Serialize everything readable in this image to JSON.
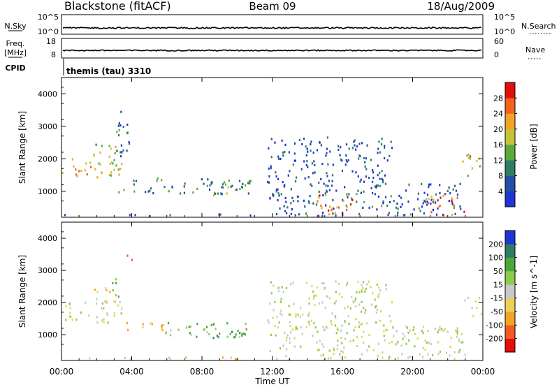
{
  "header": {
    "radar": "Blackstone (fitACF)",
    "beam": "Beam 09",
    "date": "18/Aug/2009"
  },
  "top_panels": {
    "noise": {
      "left_label": "N.Sky",
      "right_label": "N.Search",
      "left_ticks": [
        "10^5",
        "10^0"
      ],
      "right_ticks": [
        "10^5",
        "10^0"
      ]
    },
    "freq": {
      "left_label_line1": "Freq.",
      "left_label_line2": "[MHz]",
      "right_label": "Nave",
      "left_ticks": [
        "18",
        "8"
      ],
      "right_ticks": [
        "60",
        "0"
      ]
    },
    "cpid": {
      "label": "CPID",
      "value": "themis (tau) 3310"
    }
  },
  "chart_data": [
    {
      "type": "heatmap",
      "title": "",
      "xlabel": "Time UT",
      "ylabel": "Slant Range [km]",
      "xlim": [
        0,
        24
      ],
      "ylim": [
        200,
        4500
      ],
      "x_ticks": [
        "00:00",
        "04:00",
        "08:00",
        "12:00",
        "16:00",
        "20:00",
        "00:00"
      ],
      "y_ticks": [
        1000,
        2000,
        3000,
        4000
      ],
      "colorbar": {
        "label": "Power [dB]",
        "ticks": [
          4,
          8,
          12,
          16,
          20,
          24,
          28
        ],
        "range": [
          0,
          32
        ],
        "colors": [
          "#1f35d6",
          "#244fa6",
          "#2e7d62",
          "#5aaa3c",
          "#c6c33a",
          "#f2a424",
          "#f2631e",
          "#e60d0d"
        ]
      },
      "regions": [
        {
          "t0": 0.0,
          "t1": 3.4,
          "r0": 1400,
          "r1": 2100,
          "value": 20
        },
        {
          "t0": 1.8,
          "t1": 3.3,
          "r0": 2000,
          "r1": 2500,
          "value": 16
        },
        {
          "t0": 3.0,
          "t1": 4.0,
          "r0": 2100,
          "r1": 3500,
          "value": 6
        },
        {
          "t0": 3.2,
          "t1": 10.8,
          "r0": 950,
          "r1": 1450,
          "value": 9
        },
        {
          "t0": 8.5,
          "t1": 10.8,
          "r0": 900,
          "r1": 1200,
          "value": 17
        },
        {
          "t0": 11.7,
          "t1": 18.8,
          "r0": 1300,
          "r1": 2700,
          "value": 5
        },
        {
          "t0": 11.8,
          "t1": 23.0,
          "r0": 300,
          "r1": 1300,
          "value": 6
        },
        {
          "t0": 14.3,
          "t1": 16.6,
          "r0": 250,
          "r1": 950,
          "value": 24
        },
        {
          "t0": 20.6,
          "t1": 22.9,
          "r0": 300,
          "r1": 900,
          "value": 25
        },
        {
          "t0": 22.8,
          "t1": 24.0,
          "r0": 1500,
          "r1": 2200,
          "value": 18
        },
        {
          "t0": 0.0,
          "t1": 24.0,
          "r0": 220,
          "r1": 330,
          "value": 7
        }
      ]
    },
    {
      "type": "heatmap",
      "title": "",
      "xlabel": "Time UT",
      "ylabel": "Slant Range [km]",
      "xlim": [
        0,
        24
      ],
      "ylim": [
        200,
        4500
      ],
      "x_ticks": [
        "00:00",
        "04:00",
        "08:00",
        "12:00",
        "16:00",
        "20:00",
        "00:00"
      ],
      "y_ticks": [
        1000,
        2000,
        3000,
        4000
      ],
      "colorbar": {
        "label": "Velocity [m s^-1]",
        "ticks": [
          "200",
          "100",
          "50",
          "15",
          "-15",
          "-50",
          "-100",
          "-200"
        ],
        "range": [
          -250,
          250
        ],
        "colors": [
          "#e60d0d",
          "#f25a1e",
          "#f2a424",
          "#e8d25a",
          "#c8c8c8",
          "#8ccc4a",
          "#4aa83a",
          "#2e7d62",
          "#1f35d6"
        ]
      },
      "regions": [
        {
          "t0": 0.0,
          "t1": 3.4,
          "r0": 1400,
          "r1": 2100,
          "value": 0
        },
        {
          "t0": 1.8,
          "t1": 3.3,
          "r0": 2000,
          "r1": 2500,
          "value": -40
        },
        {
          "t0": 2.6,
          "t1": 3.3,
          "r0": 2200,
          "r1": 2800,
          "value": 60
        },
        {
          "t0": 3.6,
          "t1": 4.0,
          "r0": 3200,
          "r1": 3500,
          "value": -150
        },
        {
          "t0": 3.4,
          "t1": 5.8,
          "r0": 1150,
          "r1": 1450,
          "value": -40
        },
        {
          "t0": 5.8,
          "t1": 10.8,
          "r0": 950,
          "r1": 1400,
          "value": 45
        },
        {
          "t0": 8.5,
          "t1": 10.8,
          "r0": 900,
          "r1": 1200,
          "value": 90
        },
        {
          "t0": 11.7,
          "t1": 18.8,
          "r0": 1300,
          "r1": 2700,
          "value": 0
        },
        {
          "t0": 11.8,
          "t1": 23.0,
          "r0": 300,
          "r1": 1300,
          "value": 0
        },
        {
          "t0": 22.8,
          "t1": 24.0,
          "r0": 1500,
          "r1": 2200,
          "value": 0
        },
        {
          "t0": 0.0,
          "t1": 24.0,
          "r0": 220,
          "r1": 330,
          "value": -30
        }
      ]
    }
  ]
}
